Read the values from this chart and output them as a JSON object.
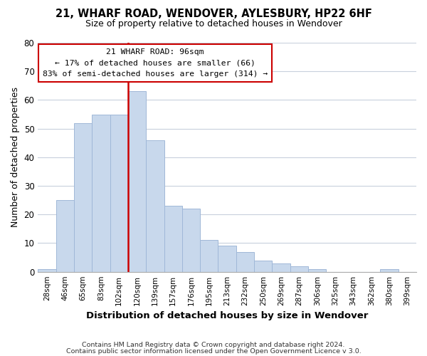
{
  "title": "21, WHARF ROAD, WENDOVER, AYLESBURY, HP22 6HF",
  "subtitle": "Size of property relative to detached houses in Wendover",
  "xlabel": "Distribution of detached houses by size in Wendover",
  "ylabel": "Number of detached properties",
  "footer_line1": "Contains HM Land Registry data © Crown copyright and database right 2024.",
  "footer_line2": "Contains public sector information licensed under the Open Government Licence v 3.0.",
  "bin_labels": [
    "28sqm",
    "46sqm",
    "65sqm",
    "83sqm",
    "102sqm",
    "120sqm",
    "139sqm",
    "157sqm",
    "176sqm",
    "195sqm",
    "213sqm",
    "232sqm",
    "250sqm",
    "269sqm",
    "287sqm",
    "306sqm",
    "325sqm",
    "343sqm",
    "362sqm",
    "380sqm",
    "399sqm"
  ],
  "bar_heights": [
    1,
    25,
    52,
    55,
    55,
    63,
    46,
    23,
    22,
    11,
    9,
    7,
    4,
    3,
    2,
    1,
    0,
    0,
    0,
    1,
    0
  ],
  "bar_color": "#c8d8ec",
  "bar_edge_color": "#a0b8d8",
  "vline_x": 4.5,
  "vline_color": "#cc0000",
  "annotation_title": "21 WHARF ROAD: 96sqm",
  "annotation_line1": "← 17% of detached houses are smaller (66)",
  "annotation_line2": "83% of semi-detached houses are larger (314) →",
  "annotation_box_color": "#ffffff",
  "annotation_box_edge": "#cc0000",
  "ylim": [
    0,
    80
  ],
  "yticks": [
    0,
    10,
    20,
    30,
    40,
    50,
    60,
    70,
    80
  ],
  "background_color": "#ffffff",
  "plot_background": "#ffffff",
  "grid_color": "#c8d0dc"
}
